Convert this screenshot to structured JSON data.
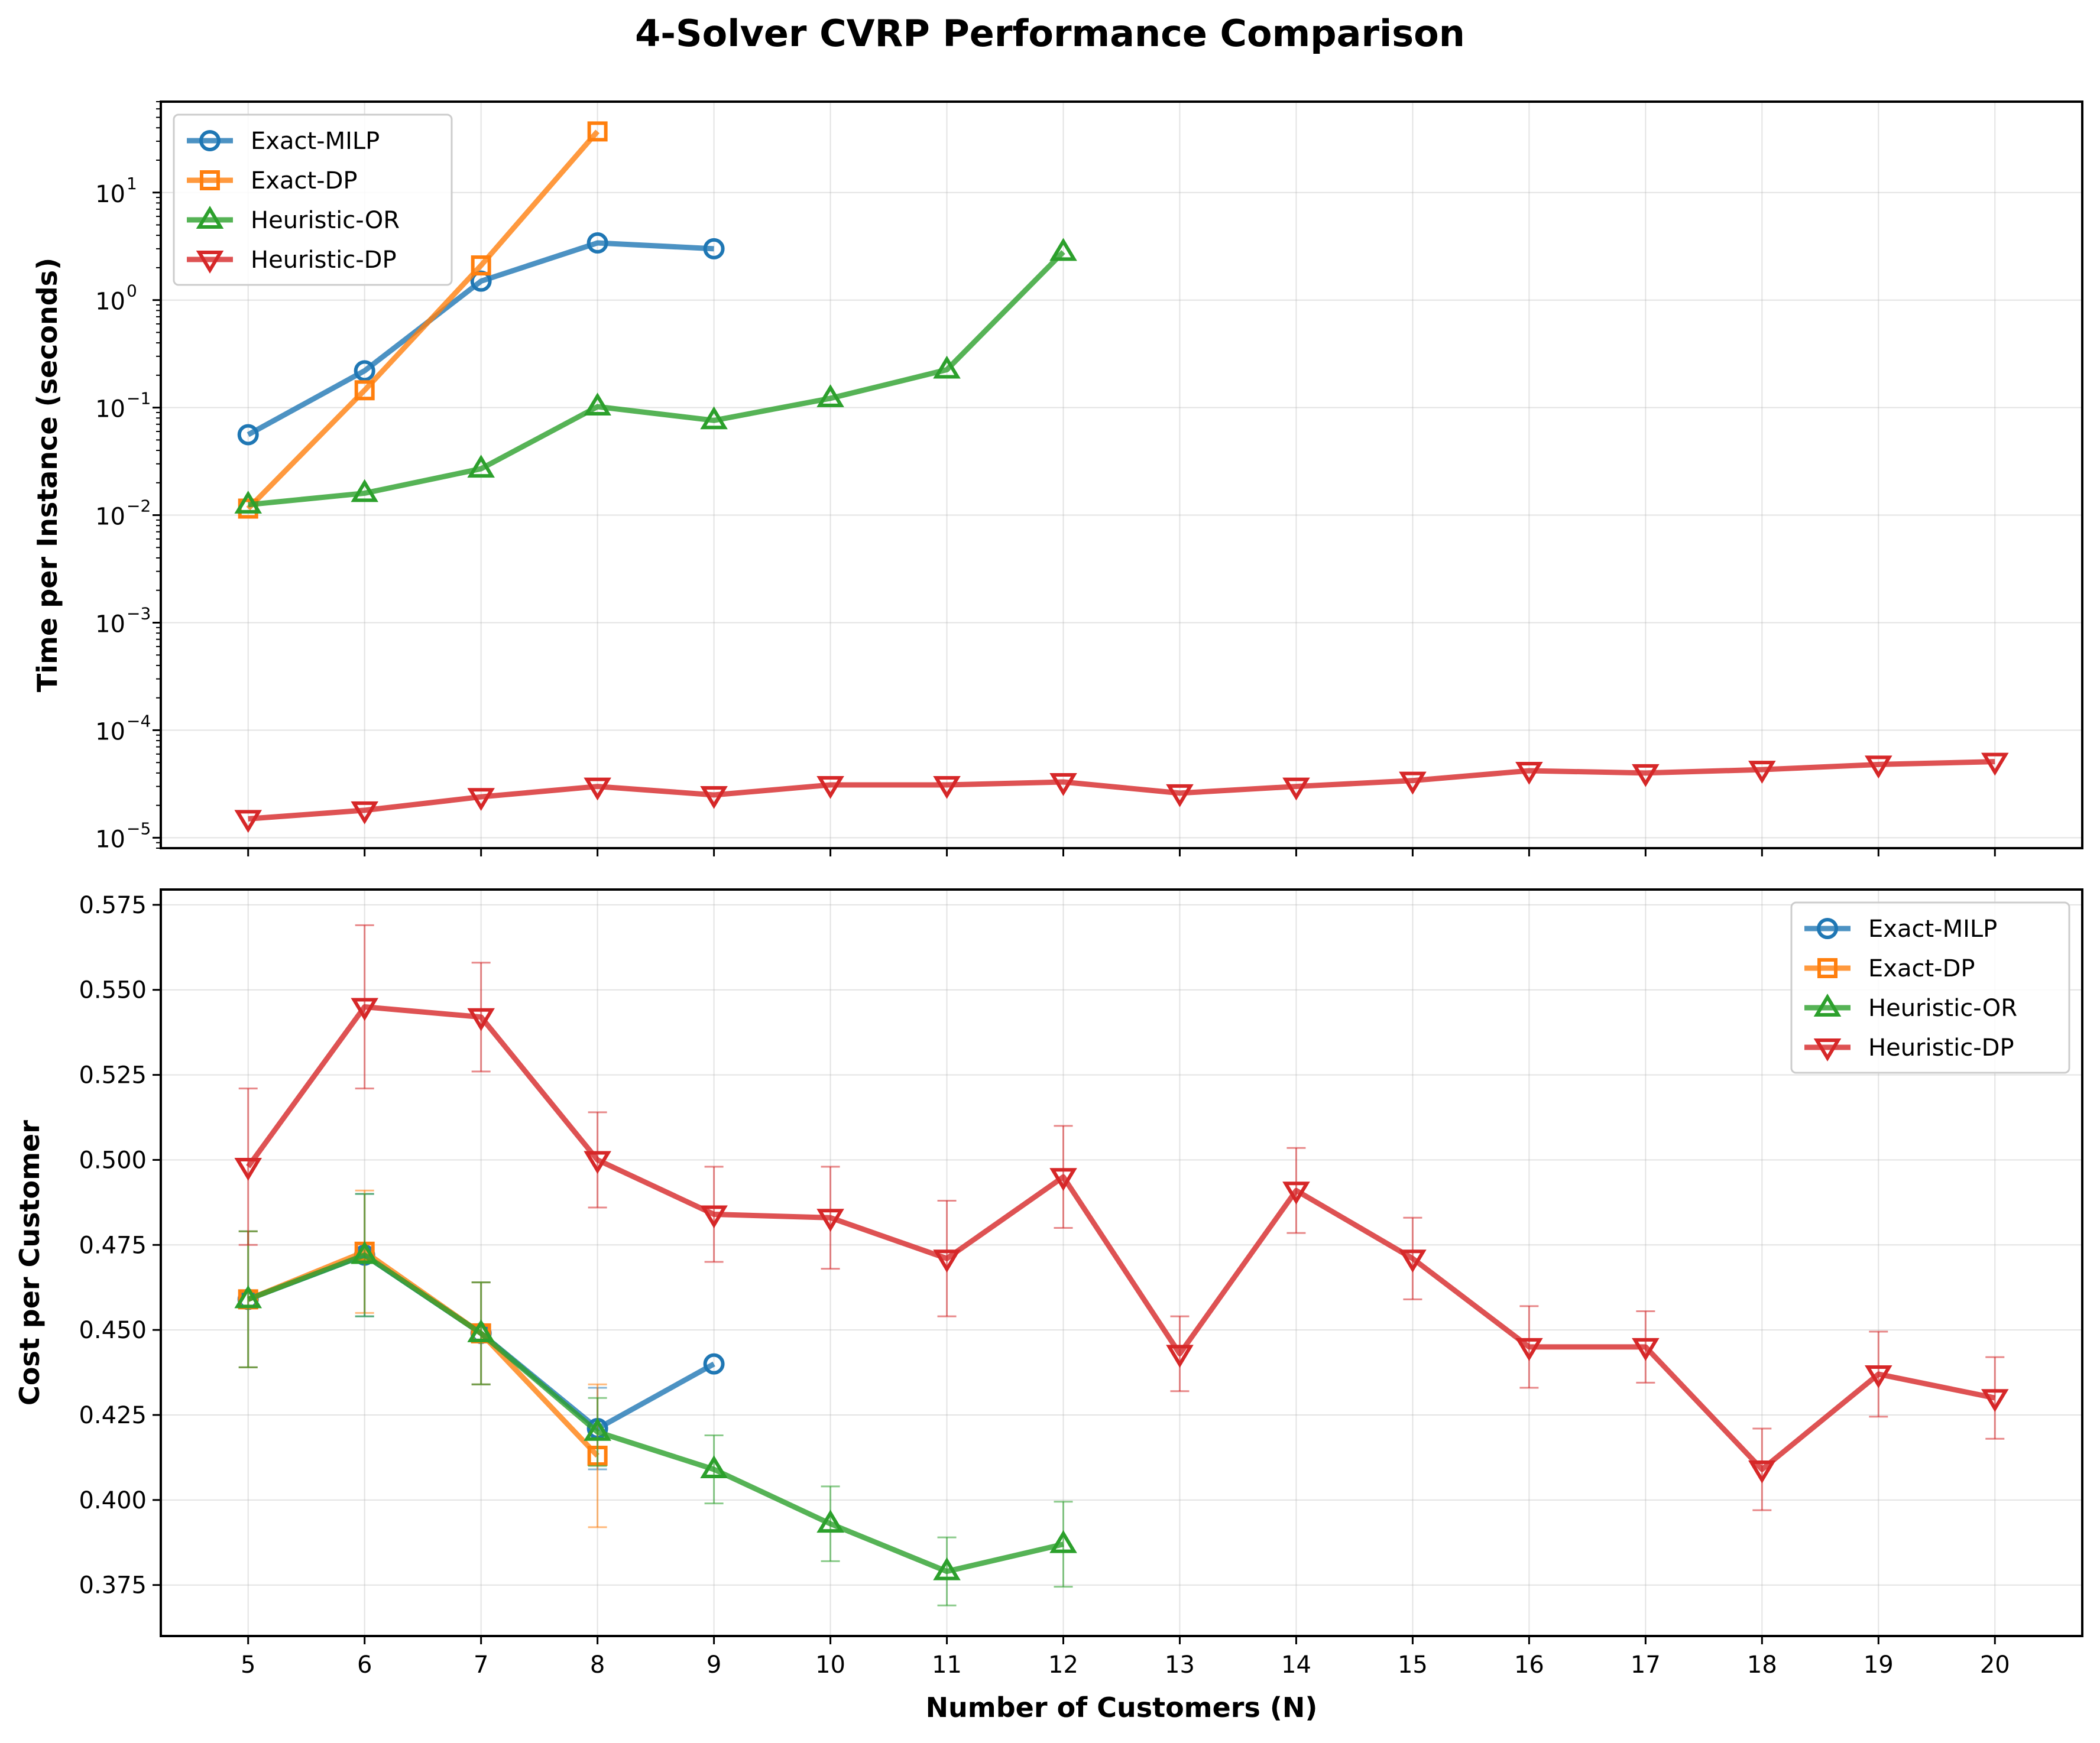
{
  "figure": {
    "title": "4-Solver CVRP Performance Comparison"
  },
  "colors": {
    "Exact-MILP": "#1f77b4",
    "Exact-DP": "#ff7f0e",
    "Heuristic-OR": "#2ca02c",
    "Heuristic-DP": "#d62728"
  },
  "markers": {
    "Exact-MILP": "circle",
    "Exact-DP": "square",
    "Heuristic-OR": "triangle-up",
    "Heuristic-DP": "triangle-down"
  },
  "chart_data": [
    {
      "type": "line",
      "ylabel": "Time per Instance (seconds)",
      "yscale": "log",
      "ylim": [
        8e-06,
        70
      ],
      "xlim": [
        4.25,
        20.75
      ],
      "grid": true,
      "legend": "upper-left",
      "y_ticks": [
        {
          "value": 1e-05,
          "label": "10",
          "exp": "−5"
        },
        {
          "value": 0.0001,
          "label": "10",
          "exp": "−4"
        },
        {
          "value": 0.001,
          "label": "10",
          "exp": "−3"
        },
        {
          "value": 0.01,
          "label": "10",
          "exp": "−2"
        },
        {
          "value": 0.1,
          "label": "10",
          "exp": "−1"
        },
        {
          "value": 1,
          "label": "10",
          "exp": "0"
        },
        {
          "value": 10,
          "label": "10",
          "exp": "1"
        }
      ],
      "series": [
        {
          "name": "Exact-MILP",
          "x": [
            5,
            6,
            7,
            8,
            9
          ],
          "y": [
            0.056,
            0.22,
            1.5,
            3.4,
            3.0
          ]
        },
        {
          "name": "Exact-DP",
          "x": [
            5,
            6,
            7,
            8
          ],
          "y": [
            0.0115,
            0.145,
            2.1,
            37
          ]
        },
        {
          "name": "Heuristic-OR",
          "x": [
            5,
            6,
            7,
            8,
            9,
            10,
            11,
            12
          ],
          "y": [
            0.0125,
            0.016,
            0.027,
            0.102,
            0.076,
            0.122,
            0.225,
            2.8
          ]
        },
        {
          "name": "Heuristic-DP",
          "x": [
            5,
            6,
            7,
            8,
            9,
            10,
            11,
            12,
            13,
            14,
            15,
            16,
            17,
            18,
            19,
            20
          ],
          "y": [
            1.5e-05,
            1.8e-05,
            2.4e-05,
            3e-05,
            2.5e-05,
            3.1e-05,
            3.1e-05,
            3.3e-05,
            2.6e-05,
            3e-05,
            3.4e-05,
            4.2e-05,
            4e-05,
            4.3e-05,
            4.8e-05,
            5.1e-05
          ]
        }
      ]
    },
    {
      "type": "line",
      "xlabel": "Number of Customers (N)",
      "ylabel": "Cost per Customer",
      "ylim": [
        0.36,
        0.5795
      ],
      "xlim": [
        4.25,
        20.75
      ],
      "grid": true,
      "legend": "upper-right",
      "x_ticks": [
        "5",
        "6",
        "7",
        "8",
        "9",
        "10",
        "11",
        "12",
        "13",
        "14",
        "15",
        "16",
        "17",
        "18",
        "19",
        "20"
      ],
      "y_ticks": [
        "0.375",
        "0.400",
        "0.425",
        "0.450",
        "0.475",
        "0.500",
        "0.525",
        "0.550",
        "0.575"
      ],
      "series": [
        {
          "name": "Exact-MILP",
          "x": [
            5,
            6,
            7,
            8,
            9
          ],
          "y": [
            0.459,
            0.472,
            0.449,
            0.421,
            0.44
          ],
          "err": [
            0.02,
            0.018,
            0.015,
            0.012,
            0
          ]
        },
        {
          "name": "Exact-DP",
          "x": [
            5,
            6,
            7,
            8
          ],
          "y": [
            0.459,
            0.473,
            0.449,
            0.413
          ],
          "err": [
            0.02,
            0.018,
            0.015,
            0.021
          ]
        },
        {
          "name": "Heuristic-OR",
          "x": [
            5,
            6,
            7,
            8,
            9,
            10,
            11,
            12
          ],
          "y": [
            0.459,
            0.472,
            0.449,
            0.42,
            0.409,
            0.393,
            0.379,
            0.387
          ],
          "err": [
            0.02,
            0.018,
            0.015,
            0.01,
            0.01,
            0.011,
            0.01,
            0.0125
          ]
        },
        {
          "name": "Heuristic-DP",
          "x": [
            5,
            6,
            7,
            8,
            9,
            10,
            11,
            12,
            13,
            14,
            15,
            16,
            17,
            18,
            19,
            20
          ],
          "y": [
            0.498,
            0.545,
            0.542,
            0.5,
            0.484,
            0.483,
            0.471,
            0.495,
            0.443,
            0.491,
            0.471,
            0.445,
            0.445,
            0.409,
            0.437,
            0.43
          ],
          "err": [
            0.023,
            0.024,
            0.016,
            0.014,
            0.014,
            0.015,
            0.017,
            0.015,
            0.011,
            0.0125,
            0.012,
            0.012,
            0.0105,
            0.012,
            0.0125,
            0.012
          ]
        }
      ]
    }
  ]
}
